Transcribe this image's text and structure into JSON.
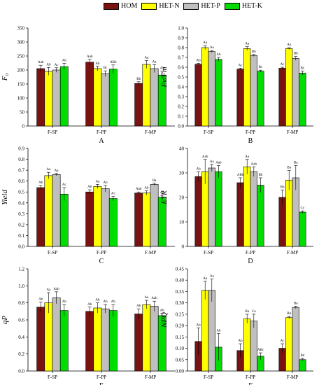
{
  "legend": [
    {
      "name": "HOM",
      "color": "#7b1212"
    },
    {
      "name": "HET-N",
      "color": "#ffff00"
    },
    {
      "name": "HET-P",
      "color": "#bfbfbf"
    },
    {
      "name": "HET-K",
      "color": "#00dd00"
    }
  ],
  "chart_data": [
    {
      "type": "bar",
      "panel": "A",
      "ylabel": "F₀",
      "categories": [
        "F-SP",
        "F-PP",
        "F-MP"
      ],
      "ylim": [
        0,
        350
      ],
      "yticks": [
        0,
        50,
        100,
        150,
        200,
        250,
        300,
        350
      ],
      "decimals": 0,
      "series": [
        {
          "name": "HOM",
          "values": [
            205,
            228,
            152
          ],
          "errors": [
            12,
            10,
            6
          ],
          "labels": [
            "Aab",
            "Aab",
            "Bb"
          ]
        },
        {
          "name": "HET-N",
          "values": [
            195,
            205,
            220
          ],
          "errors": [
            14,
            8,
            14
          ],
          "labels": [
            "Ab",
            "Ab",
            "Aa"
          ]
        },
        {
          "name": "HET-P",
          "values": [
            200,
            187,
            205
          ],
          "errors": [
            8,
            10,
            14
          ],
          "labels": [
            "Ac",
            "Bc",
            "Aa"
          ]
        },
        {
          "name": "HET-K",
          "values": [
            212,
            203,
            182
          ],
          "errors": [
            12,
            15,
            14
          ],
          "labels": [
            "Ab",
            "ABb",
            "Ab"
          ]
        }
      ]
    },
    {
      "type": "bar",
      "panel": "B",
      "ylabel": "Fv/Fm",
      "categories": [
        "F-SP",
        "F-PP",
        "F-MP"
      ],
      "ylim": [
        0,
        1.0
      ],
      "yticks": [
        0,
        0.1,
        0.2,
        0.3,
        0.4,
        0.5,
        0.6,
        0.7,
        0.8,
        0.9,
        1.0
      ],
      "decimals": 1,
      "series": [
        {
          "name": "HOM",
          "values": [
            0.63,
            0.58,
            0.59
          ],
          "errors": [
            0.01,
            0.01,
            0.01
          ],
          "labels": [
            "Ab",
            "Ac",
            "Ac"
          ]
        },
        {
          "name": "HET-N",
          "values": [
            0.8,
            0.79,
            0.79
          ],
          "errors": [
            0.02,
            0.02,
            0.01
          ],
          "labels": [
            "Aa",
            "Aa",
            "Aa"
          ]
        },
        {
          "name": "HET-P",
          "values": [
            0.76,
            0.72,
            0.69
          ],
          "errors": [
            0.01,
            0.01,
            0.02
          ],
          "labels": [
            "Aa",
            "Bb",
            "Bb"
          ]
        },
        {
          "name": "HET-K",
          "values": [
            0.68,
            0.56,
            0.54
          ],
          "errors": [
            0.02,
            0.01,
            0.02
          ],
          "labels": [
            "Ab",
            "Bc",
            "Bc"
          ]
        }
      ]
    },
    {
      "type": "bar",
      "panel": "C",
      "ylabel": "Yield",
      "categories": [
        "F-SP",
        "F-PP",
        "F-MP"
      ],
      "ylim": [
        0,
        0.9
      ],
      "yticks": [
        0,
        0.1,
        0.2,
        0.3,
        0.4,
        0.5,
        0.6,
        0.7,
        0.8,
        0.9
      ],
      "decimals": 1,
      "series": [
        {
          "name": "HOM",
          "values": [
            0.54,
            0.5,
            0.49
          ],
          "errors": [
            0.02,
            0.02,
            0.01
          ],
          "labels": [
            "Ab",
            "Ab",
            "Aab"
          ]
        },
        {
          "name": "HET-N",
          "values": [
            0.65,
            0.55,
            0.49
          ],
          "errors": [
            0.03,
            0.02,
            0.02
          ],
          "labels": [
            "Aa",
            "Aa",
            "Ab"
          ]
        },
        {
          "name": "HET-P",
          "values": [
            0.66,
            0.53,
            0.57
          ],
          "errors": [
            0.01,
            0.03,
            0.01
          ],
          "labels": [
            "Aa",
            "Ab",
            "Ba"
          ]
        },
        {
          "name": "HET-K",
          "values": [
            0.48,
            0.44,
            0.45
          ],
          "errors": [
            0.06,
            0.02,
            0.02
          ],
          "labels": [
            "Ac",
            "Ac",
            "Ac"
          ]
        }
      ]
    },
    {
      "type": "bar",
      "panel": "D",
      "ylabel": "ETR",
      "categories": [
        "F-SP",
        "F-PP",
        "F-MP"
      ],
      "ylim": [
        0,
        40
      ],
      "yticks": [
        0,
        10,
        20,
        30,
        40
      ],
      "decimals": 0,
      "series": [
        {
          "name": "HOM",
          "values": [
            28.5,
            26,
            20
          ],
          "errors": [
            2,
            2,
            3
          ],
          "labels": [
            "Ab",
            "ABb",
            "Bb"
          ]
        },
        {
          "name": "HET-N",
          "values": [
            30.5,
            32.5,
            27
          ],
          "errors": [
            5,
            3,
            4
          ],
          "labels": [
            "Aab",
            "Aa",
            "Ba"
          ]
        },
        {
          "name": "HET-P",
          "values": [
            32,
            30.5,
            28
          ],
          "errors": [
            1.5,
            2,
            5
          ],
          "labels": [
            "Aa",
            "Aab",
            "Ba"
          ]
        },
        {
          "name": "HET-K",
          "values": [
            30.5,
            25,
            14
          ],
          "errors": [
            2.5,
            3,
            0.5
          ],
          "labels": [
            "Aab",
            "Bb",
            "Cc"
          ]
        }
      ]
    },
    {
      "type": "bar",
      "panel": "E",
      "ylabel": "qP",
      "categories": [
        "F-SP",
        "F-PP",
        "F-MP"
      ],
      "ylim": [
        0,
        1.2
      ],
      "yticks": [
        0,
        0.2,
        0.4,
        0.6,
        0.8,
        1.0,
        1.2
      ],
      "decimals": 1,
      "series": [
        {
          "name": "HOM",
          "values": [
            0.75,
            0.7,
            0.67
          ],
          "errors": [
            0.06,
            0.05,
            0.06
          ],
          "labels": [
            "Ab",
            "Ab",
            "Ab"
          ]
        },
        {
          "name": "HET-N",
          "values": [
            0.8,
            0.74,
            0.78
          ],
          "errors": [
            0.12,
            0.06,
            0.05
          ],
          "labels": [
            "Aa",
            "Ab",
            "Aa"
          ]
        },
        {
          "name": "HET-P",
          "values": [
            0.86,
            0.73,
            0.76
          ],
          "errors": [
            0.07,
            0.05,
            0.06
          ],
          "labels": [
            "Aab",
            "Ab",
            "Aab"
          ]
        },
        {
          "name": "HET-K",
          "values": [
            0.71,
            0.71,
            0.65
          ],
          "errors": [
            0.07,
            0.07,
            0.03
          ],
          "labels": [
            "Ab",
            "Ab",
            "Ab"
          ]
        }
      ]
    },
    {
      "type": "bar",
      "panel": "F",
      "ylabel": "NPQ",
      "categories": [
        "F-SP",
        "F-PP",
        "F-MP"
      ],
      "ylim": [
        0,
        0.45
      ],
      "yticks": [
        0,
        0.05,
        0.1,
        0.15,
        0.2,
        0.25,
        0.3,
        0.35,
        0.4,
        0.45
      ],
      "decimals": 2,
      "series": [
        {
          "name": "HOM",
          "values": [
            0.13,
            0.09,
            0.1
          ],
          "errors": [
            0.06,
            0.03,
            0.02
          ],
          "labels": [
            "Ab",
            "Ab",
            "Ac"
          ]
        },
        {
          "name": "HET-N",
          "values": [
            0.355,
            0.23,
            0.235
          ],
          "errors": [
            0.04,
            0.02,
            0.005
          ],
          "labels": [
            "Aa",
            "Ba",
            "Bb"
          ]
        },
        {
          "name": "HET-P",
          "values": [
            0.355,
            0.22,
            0.28
          ],
          "errors": [
            0.05,
            0.03,
            0.005
          ],
          "labels": [
            "Aa",
            "Ca",
            "Ba"
          ]
        },
        {
          "name": "HET-K",
          "values": [
            0.105,
            0.065,
            0.05
          ],
          "errors": [
            0.06,
            0.015,
            0.005
          ],
          "labels": [
            "Ab",
            "ABc",
            "Bd"
          ]
        }
      ]
    }
  ]
}
